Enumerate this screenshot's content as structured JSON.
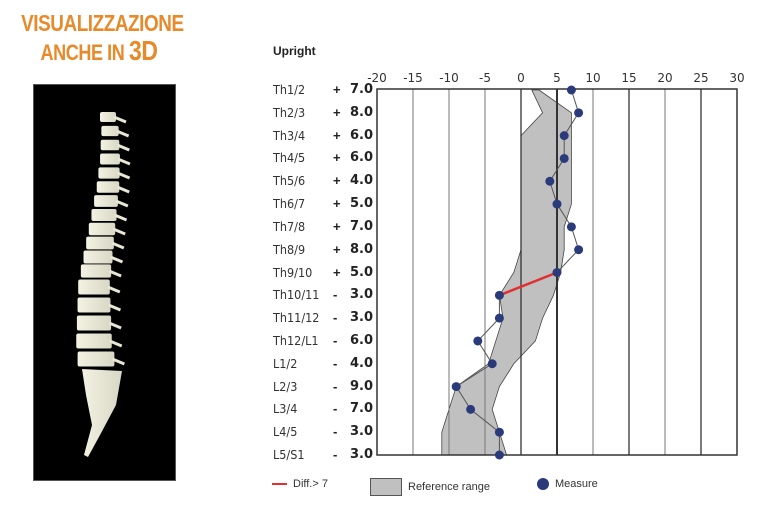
{
  "promo": {
    "line1": "VISUALIZZAZIONE",
    "line2_prefix": "ANCHE IN ",
    "line2_big": "3D",
    "color": "#e8892a"
  },
  "spine_image": {
    "description": "3D spine model",
    "background": "#000000"
  },
  "chart_data": {
    "type": "line",
    "title": "Upright",
    "orientation": "horizontal-values-vertical-categories",
    "xlim": [
      -20,
      30
    ],
    "x_ticks": [
      -20,
      -15,
      -10,
      -5,
      0,
      5,
      10,
      15,
      20,
      25,
      30
    ],
    "grid": true,
    "categories": [
      "Th1/2",
      "Th2/3",
      "Th3/4",
      "Th4/5",
      "Th5/6",
      "Th6/7",
      "Th7/8",
      "Th8/9",
      "Th9/10",
      "Th10/11",
      "Th11/12",
      "Th12/L1",
      "L1/2",
      "L2/3",
      "L3/4",
      "L4/5",
      "L5/S1"
    ],
    "signs": [
      "+",
      "+",
      "+",
      "+",
      "+",
      "+",
      "+",
      "+",
      "+",
      "-",
      "-",
      "-",
      "-",
      "-",
      "-",
      "-",
      "-"
    ],
    "display_values": [
      "7.0",
      "8.0",
      "6.0",
      "6.0",
      "4.0",
      "5.0",
      "7.0",
      "8.0",
      "5.0",
      "3.0",
      "3.0",
      "6.0",
      "4.0",
      "9.0",
      "7.0",
      "3.0",
      "3.0"
    ],
    "series": [
      {
        "name": "Measure",
        "values": [
          7,
          8,
          6,
          6,
          4,
          5,
          7,
          8,
          5,
          -3,
          -3,
          -6,
          -4,
          -9,
          -7,
          -3,
          -3
        ],
        "color": "#2a3a7a"
      }
    ],
    "reference_range": {
      "name": "Reference range",
      "low": [
        1.5,
        3,
        0,
        0,
        0,
        0,
        0,
        0,
        -1,
        -3,
        -2.5,
        -3.5,
        -4.5,
        -9,
        -10,
        -11,
        -11
      ],
      "high": [
        2.5,
        7,
        7,
        7,
        7,
        7,
        6,
        6,
        5.5,
        4.5,
        3,
        2,
        -1,
        -3,
        -4,
        -3,
        -2
      ],
      "color": "#c0c0c0"
    },
    "highlighted_segments": [
      {
        "from": "Th9/10",
        "to": "Th10/11",
        "label": "Diff.> 7",
        "color": "#e03030"
      }
    ],
    "reference_line_x": 5,
    "legend": [
      {
        "type": "line",
        "label": "Diff.> 7",
        "color": "#e03030"
      },
      {
        "type": "box",
        "label": "Reference range",
        "color": "#c0c0c0"
      },
      {
        "type": "dot",
        "label": "Measure",
        "color": "#2a3a7a"
      }
    ],
    "legend_position": "bottom"
  }
}
